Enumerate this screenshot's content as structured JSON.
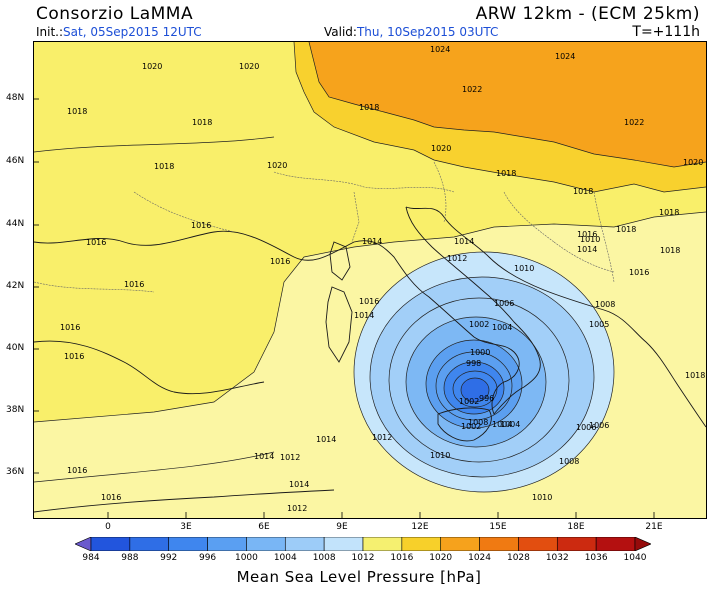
{
  "header": {
    "title_left": "Consorzio LaMMA",
    "title_right": "ARW 12km - (ECM 25km)",
    "init_label": "Init.:",
    "init_value": "Sat, 05Sep2015 12UTC",
    "valid_label": "Valid:",
    "valid_value": "Thu, 10Sep2015 03UTC",
    "step": "T=+111h"
  },
  "axes": {
    "lat_labels": [
      "48N",
      "46N",
      "44N",
      "42N",
      "40N",
      "38N",
      "36N"
    ],
    "lon_labels": [
      "0",
      "3E",
      "6E",
      "9E",
      "12E",
      "15E",
      "18E",
      "21E"
    ]
  },
  "colorbar": {
    "title": "Mean Sea Level Pressure [hPa]",
    "ticks": [
      "984",
      "988",
      "992",
      "996",
      "1000",
      "1004",
      "1008",
      "1012",
      "1016",
      "1020",
      "1024",
      "1028",
      "1032",
      "1036",
      "1040"
    ],
    "colors": [
      "#6a5acd",
      "#2255dd",
      "#2f6ee6",
      "#3f86ee",
      "#5a9ff2",
      "#79b6f5",
      "#9dccf8",
      "#c2e3fb",
      "#f5f070",
      "#f7d02a",
      "#f6a21c",
      "#f07a12",
      "#e24e10",
      "#cc2a10",
      "#b41010",
      "#960b0b"
    ]
  },
  "isobars": [
    "1020",
    "1020",
    "1024",
    "1024",
    "1022",
    "1022",
    "1020",
    "1018",
    "1018",
    "1018",
    "1018",
    "1020",
    "1020",
    "1018",
    "1018",
    "1018",
    "1016",
    "1016",
    "1016",
    "1016",
    "1016",
    "1018",
    "1016",
    "1016",
    "1016",
    "1014",
    "1014",
    "1012",
    "1014",
    "1014",
    "1012",
    "1012",
    "1010",
    "1008",
    "1008",
    "1006",
    "1006",
    "1004",
    "1004",
    "1002",
    "1002",
    "1000",
    "998",
    "996",
    "1006",
    "1008",
    "1010",
    "1010",
    "1010",
    "1016",
    "1014",
    "1014",
    "1014",
    "1012",
    "1016",
    "1016",
    "1018",
    "1018",
    "1005",
    "1002",
    "1004"
  ],
  "map_colors": {
    "yellow": "#f9ef6a",
    "light_orange": "#f8d12e",
    "orange": "#f6a31c",
    "pale_yellow": "#fbf6a3",
    "cyan_light": "#c7e6fb",
    "blue_light": "#a2cff8",
    "blue_mid": "#7db8f4",
    "blue_dark": "#5b9ff0",
    "blue_deep": "#3f86ee",
    "blue_core": "#2f6ee6",
    "coast": "#1a1a1a",
    "border": "#555555"
  }
}
